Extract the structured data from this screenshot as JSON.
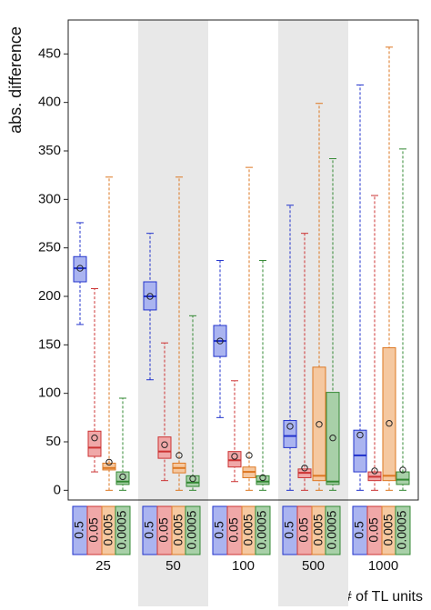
{
  "chart_data": {
    "type": "boxplot",
    "y_label": "abs. difference",
    "x_label": "# of TL units",
    "categories": [
      "25",
      "50",
      "100",
      "500",
      "1000"
    ],
    "shaded": [
      false,
      true,
      false,
      true,
      false
    ],
    "ylim": [
      -10,
      485
    ],
    "yticks": [
      0,
      50,
      100,
      150,
      200,
      250,
      300,
      350,
      400,
      450
    ],
    "series": [
      {
        "name": "0.5",
        "color": "#2233cc",
        "fill": "#aab4f0",
        "whislo": [
          171,
          114,
          75,
          0,
          0
        ],
        "q1": [
          215,
          186,
          138,
          44,
          19
        ],
        "median": [
          229,
          200,
          154,
          56,
          36
        ],
        "q3": [
          241,
          215,
          170,
          72,
          62
        ],
        "whishi": [
          276,
          265,
          237,
          294,
          418
        ],
        "mean": [
          229,
          200,
          154,
          66,
          57
        ]
      },
      {
        "name": "0.05",
        "color": "#cc3333",
        "fill": "#f0a8a8",
        "whislo": [
          19,
          10,
          9,
          0,
          0
        ],
        "q1": [
          35,
          33,
          24,
          13,
          10
        ],
        "median": [
          44,
          40,
          31,
          18,
          14
        ],
        "q3": [
          61,
          55,
          40,
          22,
          19
        ],
        "whishi": [
          208,
          152,
          113,
          265,
          304
        ],
        "mean": [
          54,
          47,
          35,
          23,
          20
        ]
      },
      {
        "name": "0.005",
        "color": "#dd7722",
        "fill": "#f5c8a0",
        "whislo": [
          0,
          0,
          0,
          0,
          0
        ],
        "q1": [
          21,
          18,
          13,
          10,
          10
        ],
        "median": [
          23,
          23,
          19,
          15,
          15
        ],
        "q3": [
          28,
          28,
          24,
          127,
          147
        ],
        "whishi": [
          323,
          323,
          333,
          399,
          457
        ],
        "mean": [
          29,
          36,
          36,
          68,
          69
        ]
      },
      {
        "name": "0.0005",
        "color": "#338833",
        "fill": "#a8d0a8",
        "whislo": [
          0,
          0,
          0,
          0,
          0
        ],
        "q1": [
          6,
          4,
          6,
          6,
          6
        ],
        "median": [
          9,
          8,
          9,
          9,
          11
        ],
        "q3": [
          19,
          15,
          15,
          101,
          19
        ],
        "whishi": [
          95,
          180,
          237,
          342,
          352
        ],
        "mean": [
          14,
          12,
          13,
          54,
          21
        ]
      }
    ]
  }
}
